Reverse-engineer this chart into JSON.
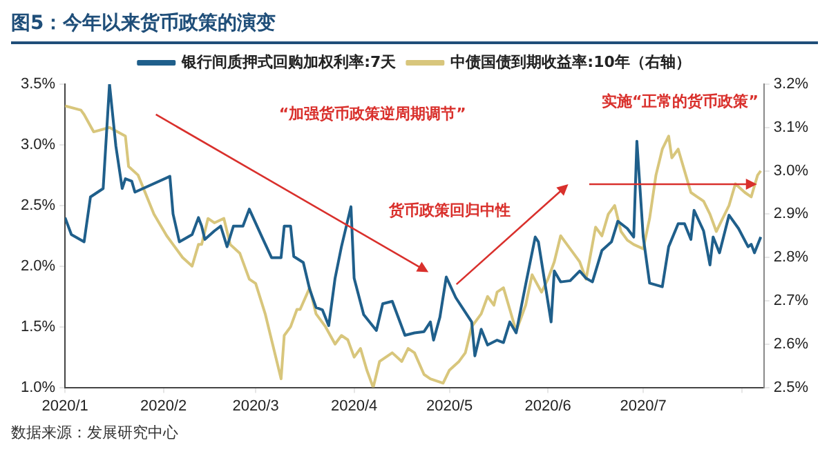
{
  "chart_data": {
    "type": "line",
    "title": "图5：今年以来货币政策的演变",
    "xlim": [
      "2020-01-01",
      "2020-08-08"
    ],
    "xticks": [
      {
        "value": "2020-01-01",
        "label": "2020/1"
      },
      {
        "value": "2020-02-01",
        "label": "2020/2"
      },
      {
        "value": "2020-03-01",
        "label": "2020/3"
      },
      {
        "value": "2020-04-01",
        "label": "2020/4"
      },
      {
        "value": "2020-05-01",
        "label": "2020/5"
      },
      {
        "value": "2020-06-01",
        "label": "2020/6"
      },
      {
        "value": "2020-07-01",
        "label": "2020/7"
      },
      {
        "value": "2020-08-01",
        "label": null
      }
    ],
    "ylim": [
      1.0,
      3.5
    ],
    "yticks": [
      {
        "value": 1.0,
        "label": "1.0%"
      },
      {
        "value": 1.5,
        "label": "1.5%"
      },
      {
        "value": 2.0,
        "label": "2.0%"
      },
      {
        "value": 2.5,
        "label": "2.5%"
      },
      {
        "value": 3.0,
        "label": "3.0%"
      },
      {
        "value": 3.5,
        "label": "3.5%"
      }
    ],
    "y2lim": [
      2.5,
      3.2
    ],
    "y2ticks": [
      {
        "value": 2.5,
        "label": "2.5%"
      },
      {
        "value": 2.6,
        "label": "2.6%"
      },
      {
        "value": 2.7,
        "label": "2.7%"
      },
      {
        "value": 2.8,
        "label": "2.8%"
      },
      {
        "value": 2.9,
        "label": "2.9%"
      },
      {
        "value": 3.0,
        "label": "3.0%"
      },
      {
        "value": 3.1,
        "label": "3.1%"
      },
      {
        "value": 3.2,
        "label": "3.2%"
      }
    ],
    "grid": false,
    "legend": "top",
    "marker": "none",
    "line_style": "solid",
    "annotations": [
      "“加强货币政策逆周期调节”",
      "货币政策回归中性",
      "实施“正常的货币政策”",
      "数据来源：发展研究中心"
    ],
    "series": [
      {
        "name": "银行间质押式回购加权利率:7天",
        "color": "#1f5f8b",
        "x": [
          "2020-01-01",
          "2020-01-03",
          "2020-01-07",
          "2020-01-09",
          "2020-01-13",
          "2020-01-15",
          "2020-01-17",
          "2020-01-19",
          "2020-01-20",
          "2020-01-22",
          "2020-01-23",
          "2020-02-03",
          "2020-02-04",
          "2020-02-06",
          "2020-02-10",
          "2020-02-12",
          "2020-02-13",
          "2020-02-14",
          "2020-02-17",
          "2020-02-19",
          "2020-02-21",
          "2020-02-23",
          "2020-02-26",
          "2020-02-28",
          "2020-03-03",
          "2020-03-06",
          "2020-03-09",
          "2020-03-10",
          "2020-03-12",
          "2020-03-13",
          "2020-03-16",
          "2020-03-18",
          "2020-03-20",
          "2020-03-22",
          "2020-03-24",
          "2020-03-26",
          "2020-03-28",
          "2020-03-31",
          "2020-04-01",
          "2020-04-04",
          "2020-04-08",
          "2020-04-10",
          "2020-04-13",
          "2020-04-17",
          "2020-04-20",
          "2020-04-23",
          "2020-04-25",
          "2020-04-26",
          "2020-04-28",
          "2020-04-30",
          "2020-05-03",
          "2020-05-07",
          "2020-05-08",
          "2020-05-09",
          "2020-05-11",
          "2020-05-13",
          "2020-05-16",
          "2020-05-18",
          "2020-05-20",
          "2020-05-22",
          "2020-05-25",
          "2020-05-28",
          "2020-05-29",
          "2020-06-02",
          "2020-06-03",
          "2020-06-05",
          "2020-06-08",
          "2020-06-11",
          "2020-06-13",
          "2020-06-15",
          "2020-06-18",
          "2020-06-21",
          "2020-06-23",
          "2020-06-26",
          "2020-06-28",
          "2020-06-29",
          "2020-07-01",
          "2020-07-03",
          "2020-07-07",
          "2020-07-09",
          "2020-07-12",
          "2020-07-14",
          "2020-07-16",
          "2020-07-17",
          "2020-07-20",
          "2020-07-22",
          "2020-07-23",
          "2020-07-25",
          "2020-07-28",
          "2020-07-31",
          "2020-08-03",
          "2020-08-04",
          "2020-08-05",
          "2020-08-07"
        ],
        "values": [
          2.4,
          2.26,
          2.2,
          2.57,
          2.64,
          3.5,
          2.99,
          2.64,
          2.72,
          2.7,
          2.61,
          2.74,
          2.43,
          2.2,
          2.26,
          2.4,
          2.33,
          2.22,
          2.29,
          2.33,
          2.16,
          2.33,
          2.33,
          2.47,
          2.24,
          2.07,
          2.07,
          2.33,
          2.33,
          2.08,
          2.03,
          1.81,
          1.66,
          1.64,
          1.51,
          1.9,
          2.16,
          2.49,
          1.9,
          1.6,
          1.47,
          1.69,
          1.71,
          1.43,
          1.45,
          1.46,
          1.54,
          1.39,
          1.58,
          1.91,
          1.74,
          1.58,
          1.54,
          1.26,
          1.48,
          1.35,
          1.39,
          1.37,
          1.54,
          1.45,
          1.85,
          2.24,
          2.2,
          1.54,
          1.96,
          1.87,
          1.88,
          1.96,
          1.9,
          1.87,
          2.13,
          2.2,
          2.37,
          2.31,
          2.24,
          3.03,
          2.24,
          1.86,
          1.83,
          2.16,
          2.35,
          2.35,
          2.22,
          2.46,
          2.29,
          2.01,
          2.24,
          2.11,
          2.42,
          2.31,
          2.16,
          2.18,
          2.11,
          2.24
        ]
      },
      {
        "name": "中债国债到期收益率:10年（右轴）",
        "color": "#d8c67c",
        "axis": "y2",
        "x": [
          "2020-01-01",
          "2020-01-06",
          "2020-01-07",
          "2020-01-10",
          "2020-01-15",
          "2020-01-20",
          "2020-01-21",
          "2020-01-24",
          "2020-01-29",
          "2020-02-02",
          "2020-02-04",
          "2020-02-07",
          "2020-02-10",
          "2020-02-12",
          "2020-02-13",
          "2020-02-15",
          "2020-02-17",
          "2020-02-20",
          "2020-02-22",
          "2020-02-25",
          "2020-02-28",
          "2020-03-01",
          "2020-03-04",
          "2020-03-06",
          "2020-03-09",
          "2020-03-10",
          "2020-03-12",
          "2020-03-14",
          "2020-03-15",
          "2020-03-18",
          "2020-03-20",
          "2020-03-23",
          "2020-03-26",
          "2020-03-28",
          "2020-03-30",
          "2020-04-01",
          "2020-04-03",
          "2020-04-05",
          "2020-04-07",
          "2020-04-09",
          "2020-04-13",
          "2020-04-16",
          "2020-04-18",
          "2020-04-20",
          "2020-04-23",
          "2020-04-25",
          "2020-04-29",
          "2020-05-01",
          "2020-05-04",
          "2020-05-06",
          "2020-05-08",
          "2020-05-11",
          "2020-05-13",
          "2020-05-15",
          "2020-05-16",
          "2020-05-18",
          "2020-05-20",
          "2020-05-22",
          "2020-05-25",
          "2020-05-27",
          "2020-05-30",
          "2020-06-01",
          "2020-06-03",
          "2020-06-05",
          "2020-06-07",
          "2020-06-09",
          "2020-06-11",
          "2020-06-13",
          "2020-06-14",
          "2020-06-16",
          "2020-06-18",
          "2020-06-20",
          "2020-06-22",
          "2020-06-24",
          "2020-06-26",
          "2020-06-28",
          "2020-07-01",
          "2020-07-03",
          "2020-07-05",
          "2020-07-07",
          "2020-07-09",
          "2020-07-10",
          "2020-07-12",
          "2020-07-14",
          "2020-07-16",
          "2020-07-18",
          "2020-07-20",
          "2020-07-22",
          "2020-07-24",
          "2020-07-26",
          "2020-07-28",
          "2020-07-30",
          "2020-08-02",
          "2020-08-04",
          "2020-08-06",
          "2020-08-07"
        ],
        "values": [
          3.15,
          3.14,
          3.13,
          3.09,
          3.1,
          3.08,
          3.01,
          2.99,
          2.9,
          2.85,
          2.83,
          2.8,
          2.78,
          2.83,
          2.83,
          2.89,
          2.88,
          2.89,
          2.83,
          2.81,
          2.75,
          2.74,
          2.67,
          2.61,
          2.52,
          2.62,
          2.64,
          2.68,
          2.68,
          2.73,
          2.67,
          2.64,
          2.6,
          2.62,
          2.61,
          2.57,
          2.59,
          2.54,
          2.5,
          2.56,
          2.58,
          2.56,
          2.59,
          2.58,
          2.53,
          2.52,
          2.51,
          2.54,
          2.56,
          2.58,
          2.64,
          2.67,
          2.71,
          2.69,
          2.72,
          2.73,
          2.68,
          2.63,
          2.69,
          2.76,
          2.72,
          2.75,
          2.79,
          2.85,
          2.83,
          2.81,
          2.79,
          2.75,
          2.79,
          2.87,
          2.85,
          2.9,
          2.92,
          2.86,
          2.84,
          2.83,
          2.82,
          2.89,
          2.99,
          3.05,
          3.08,
          3.03,
          3.05,
          3.0,
          2.95,
          2.94,
          2.93,
          2.9,
          2.86,
          2.89,
          2.92,
          2.97,
          2.95,
          2.94,
          2.99,
          3.0
        ]
      }
    ]
  }
}
